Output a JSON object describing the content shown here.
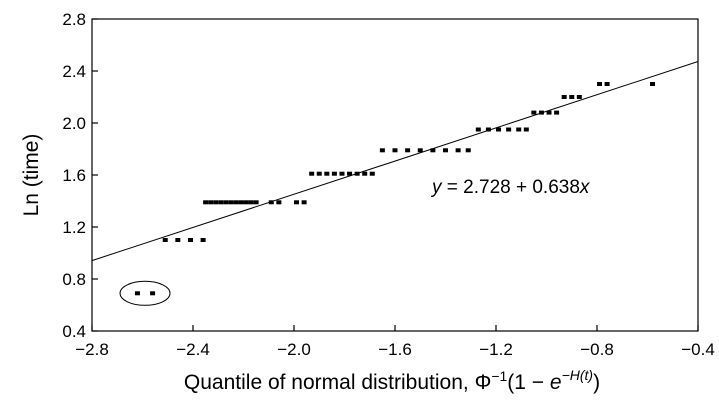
{
  "chart_data": {
    "type": "scatter",
    "title": "",
    "xlabel_parts": {
      "main": "Quantile of normal distribution, ",
      "phi": "Φ",
      "phi_exp": "−1",
      "open": "(1 − ",
      "e": "e",
      "e_exp": "−H(t)",
      "close": ")"
    },
    "ylabel": "Ln (time)",
    "xlim": [
      -2.8,
      -0.4
    ],
    "ylim": [
      0.4,
      2.8
    ],
    "xticks": [
      -2.8,
      -2.4,
      -2.0,
      -1.6,
      -1.2,
      -0.8,
      -0.4
    ],
    "xtick_labels": [
      "−2.8",
      "−2.4",
      "−2.0",
      "−1.6",
      "−1.2",
      "−0.8",
      "−0.4"
    ],
    "yticks": [
      0.4,
      0.8,
      1.2,
      1.6,
      2.0,
      2.4,
      2.8
    ],
    "ytick_labels": [
      "0.4",
      "0.8",
      "1.2",
      "1.6",
      "2.0",
      "2.4",
      "2.8"
    ],
    "grid": false,
    "fit_line": {
      "intercept": 2.728,
      "slope": 0.638
    },
    "equation": {
      "y": "y",
      "mid": " = 2.728 + 0.638",
      "x": "x"
    },
    "points": [
      {
        "x": -2.62,
        "y": 0.69
      },
      {
        "x": -2.56,
        "y": 0.69
      },
      {
        "x": -2.51,
        "y": 1.1
      },
      {
        "x": -2.46,
        "y": 1.1
      },
      {
        "x": -2.41,
        "y": 1.1
      },
      {
        "x": -2.36,
        "y": 1.1
      },
      {
        "x": -2.35,
        "y": 1.39
      },
      {
        "x": -2.33,
        "y": 1.39
      },
      {
        "x": -2.31,
        "y": 1.39
      },
      {
        "x": -2.29,
        "y": 1.39
      },
      {
        "x": -2.27,
        "y": 1.39
      },
      {
        "x": -2.25,
        "y": 1.39
      },
      {
        "x": -2.23,
        "y": 1.39
      },
      {
        "x": -2.21,
        "y": 1.39
      },
      {
        "x": -2.19,
        "y": 1.39
      },
      {
        "x": -2.17,
        "y": 1.39
      },
      {
        "x": -2.15,
        "y": 1.39
      },
      {
        "x": -2.09,
        "y": 1.39
      },
      {
        "x": -2.06,
        "y": 1.39
      },
      {
        "x": -1.99,
        "y": 1.39
      },
      {
        "x": -1.96,
        "y": 1.39
      },
      {
        "x": -1.93,
        "y": 1.61
      },
      {
        "x": -1.9,
        "y": 1.61
      },
      {
        "x": -1.87,
        "y": 1.61
      },
      {
        "x": -1.84,
        "y": 1.61
      },
      {
        "x": -1.81,
        "y": 1.61
      },
      {
        "x": -1.78,
        "y": 1.61
      },
      {
        "x": -1.75,
        "y": 1.61
      },
      {
        "x": -1.72,
        "y": 1.61
      },
      {
        "x": -1.69,
        "y": 1.61
      },
      {
        "x": -1.65,
        "y": 1.79
      },
      {
        "x": -1.6,
        "y": 1.79
      },
      {
        "x": -1.55,
        "y": 1.79
      },
      {
        "x": -1.5,
        "y": 1.79
      },
      {
        "x": -1.45,
        "y": 1.79
      },
      {
        "x": -1.4,
        "y": 1.79
      },
      {
        "x": -1.35,
        "y": 1.79
      },
      {
        "x": -1.31,
        "y": 1.79
      },
      {
        "x": -1.27,
        "y": 1.95
      },
      {
        "x": -1.23,
        "y": 1.95
      },
      {
        "x": -1.19,
        "y": 1.95
      },
      {
        "x": -1.15,
        "y": 1.95
      },
      {
        "x": -1.11,
        "y": 1.95
      },
      {
        "x": -1.08,
        "y": 1.95
      },
      {
        "x": -1.05,
        "y": 2.08
      },
      {
        "x": -1.02,
        "y": 2.08
      },
      {
        "x": -0.99,
        "y": 2.08
      },
      {
        "x": -0.96,
        "y": 2.08
      },
      {
        "x": -0.93,
        "y": 2.2
      },
      {
        "x": -0.9,
        "y": 2.2
      },
      {
        "x": -0.87,
        "y": 2.2
      },
      {
        "x": -0.79,
        "y": 2.3
      },
      {
        "x": -0.76,
        "y": 2.3
      },
      {
        "x": -0.58,
        "y": 2.3
      }
    ],
    "outlier_group": {
      "x_range": [
        -2.62,
        -2.56
      ],
      "y": 0.69
    }
  }
}
